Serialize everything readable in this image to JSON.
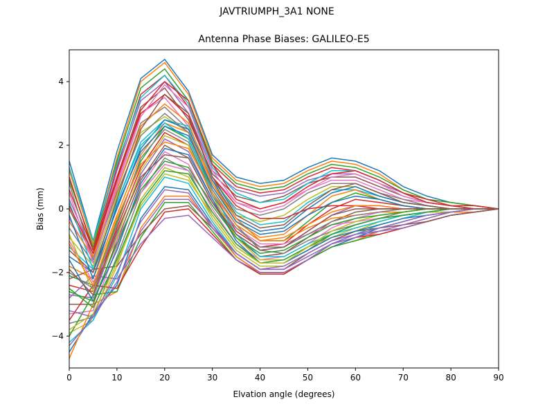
{
  "figure": {
    "suptitle": "JAVTRIUMPH_3A1  NONE"
  },
  "chart_data": {
    "type": "line",
    "title": "Antenna Phase Biases: GALILEO-E5",
    "xlabel": "Elvation angle (degrees)",
    "ylabel": "Bias (mm)",
    "xlim": [
      0,
      90
    ],
    "ylim": [
      -5,
      5
    ],
    "xticks": [
      0,
      10,
      20,
      30,
      40,
      50,
      60,
      70,
      80,
      90
    ],
    "yticks": [
      -4,
      -2,
      0,
      2,
      4
    ],
    "grid": false,
    "legend": "none",
    "x": [
      0,
      5,
      10,
      15,
      20,
      25,
      30,
      35,
      40,
      45,
      50,
      55,
      60,
      65,
      70,
      75,
      80,
      85,
      90
    ],
    "color_cycle": [
      "#1f77b4",
      "#ff7f0e",
      "#2ca02c",
      "#d62728",
      "#9467bd",
      "#8c564b",
      "#e377c2",
      "#7f7f7f",
      "#bcbd22",
      "#17becf"
    ],
    "series": [
      {
        "values": [
          1.5,
          -1.0,
          1.8,
          4.1,
          4.7,
          3.7,
          1.7,
          1.0,
          0.8,
          0.9,
          1.3,
          1.6,
          1.5,
          1.2,
          0.7,
          0.4,
          0.2,
          0.1,
          0.0
        ]
      },
      {
        "values": [
          1.2,
          -1.1,
          1.6,
          4.0,
          4.6,
          3.6,
          1.6,
          0.9,
          0.7,
          0.8,
          1.2,
          1.5,
          1.4,
          1.1,
          0.6,
          0.3,
          0.2,
          0.1,
          0.0
        ]
      },
      {
        "values": [
          0.9,
          -1.2,
          1.5,
          3.8,
          4.4,
          3.4,
          1.5,
          0.8,
          0.6,
          0.7,
          1.1,
          1.4,
          1.3,
          1.0,
          0.6,
          0.3,
          0.2,
          0.1,
          0.0
        ]
      },
      {
        "values": [
          0.6,
          -1.3,
          1.3,
          3.6,
          4.2,
          3.2,
          1.4,
          0.7,
          0.5,
          0.6,
          1.0,
          1.3,
          1.2,
          0.9,
          0.5,
          0.3,
          0.1,
          0.1,
          0.0
        ]
      },
      {
        "values": [
          0.3,
          -1.4,
          1.2,
          3.4,
          4.0,
          3.0,
          1.2,
          0.6,
          0.4,
          0.5,
          0.9,
          1.1,
          1.1,
          0.8,
          0.5,
          0.2,
          0.1,
          0.0,
          0.0
        ]
      },
      {
        "values": [
          0.0,
          -1.5,
          1.0,
          3.2,
          3.8,
          2.8,
          1.1,
          0.4,
          0.2,
          0.4,
          0.8,
          1.0,
          1.0,
          0.7,
          0.4,
          0.2,
          0.1,
          0.0,
          0.0
        ]
      },
      {
        "values": [
          -0.3,
          -1.6,
          0.8,
          3.0,
          3.5,
          2.6,
          1.0,
          0.2,
          0.0,
          0.2,
          0.6,
          0.9,
          0.9,
          0.6,
          0.3,
          0.2,
          0.1,
          0.0,
          0.0
        ]
      },
      {
        "values": [
          -0.6,
          -1.7,
          0.6,
          2.7,
          3.2,
          2.5,
          0.9,
          0.0,
          -0.2,
          0.0,
          0.5,
          0.8,
          0.8,
          0.5,
          0.3,
          0.1,
          0.0,
          0.0,
          0.0
        ]
      },
      {
        "values": [
          -0.9,
          -1.8,
          0.4,
          2.4,
          2.9,
          2.4,
          0.8,
          -0.2,
          -0.4,
          -0.2,
          0.3,
          0.7,
          0.7,
          0.4,
          0.2,
          0.1,
          0.0,
          0.0,
          0.0
        ]
      },
      {
        "values": [
          -1.2,
          -1.9,
          0.2,
          2.1,
          2.8,
          2.6,
          1.0,
          -0.1,
          -0.5,
          -0.4,
          0.2,
          0.6,
          0.6,
          0.4,
          0.2,
          0.1,
          0.0,
          0.0,
          0.0
        ]
      },
      {
        "values": [
          -1.5,
          -2.0,
          0.0,
          1.9,
          2.8,
          2.5,
          0.9,
          -0.3,
          -0.7,
          -0.6,
          0.0,
          0.5,
          0.7,
          0.4,
          0.2,
          0.1,
          0.0,
          0.0,
          0.0
        ]
      },
      {
        "values": [
          -1.8,
          -2.2,
          -0.2,
          1.7,
          2.7,
          2.4,
          0.8,
          -0.4,
          -0.9,
          -0.8,
          -0.2,
          0.4,
          0.6,
          0.3,
          0.1,
          0.0,
          0.0,
          0.0,
          0.0
        ]
      },
      {
        "values": [
          -2.1,
          -2.4,
          -0.4,
          1.5,
          2.6,
          2.2,
          0.6,
          -0.5,
          -1.0,
          -1.0,
          -0.4,
          0.2,
          0.5,
          0.3,
          0.1,
          0.0,
          0.0,
          0.0,
          0.0
        ]
      },
      {
        "values": [
          -2.4,
          -2.6,
          -0.6,
          1.3,
          2.4,
          2.0,
          0.5,
          -0.7,
          -1.2,
          -1.1,
          -0.5,
          0.0,
          0.3,
          0.2,
          0.1,
          0.0,
          0.0,
          0.0,
          0.0
        ]
      },
      {
        "values": [
          -2.7,
          -2.8,
          -0.8,
          1.1,
          2.2,
          1.8,
          0.3,
          -0.8,
          -1.3,
          -1.2,
          -0.7,
          -0.2,
          0.1,
          0.1,
          0.0,
          0.0,
          0.0,
          0.0,
          0.0
        ]
      },
      {
        "values": [
          -3.0,
          -3.0,
          -1.0,
          0.9,
          2.0,
          1.6,
          0.2,
          -0.9,
          -1.5,
          -1.4,
          -0.9,
          -0.4,
          -0.1,
          0.0,
          0.0,
          0.0,
          0.0,
          0.0,
          0.0
        ]
      },
      {
        "values": [
          -3.3,
          -3.2,
          -1.2,
          0.7,
          1.8,
          1.4,
          0.0,
          -1.1,
          -1.6,
          -1.5,
          -1.1,
          -0.6,
          -0.3,
          -0.1,
          0.0,
          0.0,
          0.0,
          0.0,
          0.0
        ]
      },
      {
        "values": [
          -3.6,
          -3.4,
          -1.5,
          0.5,
          1.6,
          1.2,
          -0.2,
          -1.2,
          -1.7,
          -1.7,
          -1.3,
          -0.8,
          -0.5,
          -0.3,
          -0.1,
          0.0,
          0.0,
          0.0,
          0.0
        ]
      },
      {
        "values": [
          -3.9,
          -3.5,
          -1.8,
          0.3,
          1.3,
          1.0,
          -0.3,
          -1.3,
          -1.8,
          -1.8,
          -1.4,
          -1.0,
          -0.7,
          -0.4,
          -0.2,
          -0.1,
          0.0,
          0.0,
          0.0
        ]
      },
      {
        "values": [
          -4.2,
          -3.5,
          -2.1,
          0.0,
          1.0,
          0.8,
          -0.4,
          -1.4,
          -1.9,
          -1.9,
          -1.5,
          -1.1,
          -0.8,
          -0.5,
          -0.3,
          -0.1,
          -0.1,
          0.0,
          0.0
        ]
      },
      {
        "values": [
          -4.5,
          -3.3,
          -2.4,
          -0.3,
          0.7,
          0.6,
          -0.5,
          -1.5,
          -2.0,
          -2.0,
          -1.6,
          -1.2,
          -0.9,
          -0.6,
          -0.4,
          -0.2,
          -0.1,
          0.0,
          0.0
        ]
      },
      {
        "values": [
          -4.7,
          -3.0,
          -2.6,
          -0.6,
          0.4,
          0.4,
          -0.6,
          -1.5,
          -2.0,
          -2.0,
          -1.6,
          -1.2,
          -1.0,
          -0.7,
          -0.5,
          -0.3,
          -0.1,
          -0.1,
          0.0
        ]
      },
      {
        "values": [
          -4.0,
          -2.7,
          -2.6,
          -0.9,
          0.2,
          0.2,
          -0.7,
          -1.6,
          -2.05,
          -2.05,
          -1.6,
          -1.2,
          -1.0,
          -0.8,
          -0.6,
          -0.4,
          -0.2,
          -0.1,
          0.0
        ]
      },
      {
        "values": [
          -3.5,
          -2.4,
          -2.5,
          -1.2,
          -0.1,
          0.0,
          -0.8,
          -1.6,
          -2.05,
          -2.05,
          -1.6,
          -1.1,
          -0.9,
          -0.8,
          -0.6,
          -0.4,
          -0.2,
          -0.1,
          0.0
        ]
      },
      {
        "values": [
          -2.8,
          -2.1,
          -2.2,
          -1.1,
          -0.3,
          -0.2,
          -0.9,
          -1.6,
          -2.0,
          -2.0,
          -1.6,
          -1.1,
          -0.8,
          -0.7,
          -0.6,
          -0.4,
          -0.2,
          -0.1,
          0.0
        ]
      },
      {
        "values": [
          -2.2,
          -1.9,
          -1.8,
          -0.8,
          0.0,
          0.1,
          -0.6,
          -1.4,
          -1.9,
          -1.9,
          -1.4,
          -1.0,
          -0.7,
          -0.6,
          -0.5,
          -0.4,
          -0.2,
          -0.1,
          0.0
        ]
      },
      {
        "values": [
          -1.0,
          -2.3,
          -1.0,
          0.5,
          1.4,
          1.2,
          0.2,
          -0.6,
          -1.1,
          -1.1,
          -0.8,
          -0.5,
          -0.4,
          -0.3,
          -0.2,
          -0.1,
          -0.1,
          0.0,
          0.0
        ]
      },
      {
        "values": [
          0.8,
          -1.6,
          0.5,
          2.3,
          3.0,
          2.4,
          0.6,
          -0.5,
          -1.3,
          -1.4,
          -1.0,
          -0.7,
          -0.5,
          -0.3,
          -0.2,
          -0.1,
          0.0,
          0.0,
          0.0
        ]
      },
      {
        "values": [
          -0.8,
          -2.6,
          -0.9,
          1.2,
          2.3,
          2.0,
          0.4,
          -0.9,
          -1.6,
          -1.6,
          -1.2,
          -0.9,
          -0.6,
          -0.4,
          -0.2,
          -0.1,
          -0.1,
          0.0,
          0.0
        ]
      },
      {
        "values": [
          0.2,
          -1.9,
          0.2,
          2.0,
          2.7,
          2.2,
          0.5,
          -0.8,
          -1.5,
          -1.5,
          -1.1,
          -0.8,
          -0.6,
          -0.4,
          -0.2,
          -0.1,
          0.0,
          0.0,
          0.0
        ]
      },
      {
        "values": [
          -1.6,
          -2.9,
          -1.3,
          0.8,
          1.9,
          1.7,
          0.3,
          -1.0,
          -1.7,
          -1.7,
          -1.3,
          -0.9,
          -0.7,
          -0.5,
          -0.3,
          -0.2,
          -0.1,
          0.0,
          0.0
        ]
      },
      {
        "values": [
          -0.4,
          -1.5,
          0.6,
          2.6,
          3.3,
          2.7,
          0.8,
          -0.3,
          -1.0,
          -1.0,
          -0.6,
          -0.3,
          -0.2,
          -0.1,
          -0.1,
          0.0,
          0.0,
          0.0,
          0.0
        ]
      },
      {
        "values": [
          -2.5,
          -3.1,
          -1.6,
          0.2,
          1.2,
          1.1,
          -0.1,
          -1.1,
          -1.7,
          -1.6,
          -1.2,
          -0.8,
          -0.5,
          -0.3,
          -0.2,
          -0.1,
          0.0,
          0.0,
          0.0
        ]
      },
      {
        "values": [
          1.0,
          -1.3,
          1.0,
          3.0,
          3.6,
          2.9,
          1.0,
          0.1,
          -0.3,
          -0.3,
          0.0,
          0.1,
          0.1,
          0.0,
          0.0,
          0.0,
          0.0,
          0.0,
          0.0
        ]
      },
      {
        "values": [
          -3.2,
          -3.4,
          -2.0,
          -0.4,
          0.6,
          0.5,
          -0.6,
          -1.4,
          -1.9,
          -1.8,
          -1.4,
          -1.0,
          -0.8,
          -0.6,
          -0.4,
          -0.2,
          -0.1,
          0.0,
          0.0
        ]
      },
      {
        "values": [
          -1.3,
          -2.0,
          0.3,
          2.5,
          3.6,
          3.0,
          1.0,
          -0.2,
          -0.6,
          -0.5,
          0.1,
          0.6,
          0.8,
          0.5,
          0.2,
          0.1,
          0.0,
          0.0,
          0.0
        ]
      },
      {
        "values": [
          0.5,
          -1.7,
          0.7,
          2.9,
          3.9,
          3.2,
          1.2,
          0.2,
          -0.1,
          0.1,
          0.6,
          1.0,
          1.1,
          0.8,
          0.4,
          0.2,
          0.1,
          0.0,
          0.0
        ]
      },
      {
        "values": [
          -2.0,
          -2.5,
          -0.5,
          1.6,
          2.5,
          2.1,
          0.4,
          -0.6,
          -1.2,
          -1.2,
          -0.8,
          -0.4,
          -0.2,
          -0.1,
          0.0,
          0.0,
          0.0,
          0.0,
          0.0
        ]
      },
      {
        "values": [
          -3.8,
          -3.3,
          -1.7,
          0.1,
          1.1,
          0.9,
          -0.2,
          -1.2,
          -1.7,
          -1.7,
          -1.2,
          -0.7,
          -0.4,
          -0.2,
          -0.1,
          0.0,
          0.0,
          0.0,
          0.0
        ]
      },
      {
        "values": [
          1.3,
          -1.0,
          1.4,
          3.5,
          4.2,
          3.3,
          1.3,
          0.5,
          0.2,
          0.3,
          0.8,
          1.2,
          1.2,
          0.9,
          0.5,
          0.2,
          0.1,
          0.0,
          0.0
        ]
      },
      {
        "values": [
          -0.2,
          -2.2,
          0.1,
          1.8,
          2.6,
          2.3,
          0.7,
          -0.4,
          -0.8,
          -0.7,
          -0.2,
          0.2,
          0.4,
          0.3,
          0.1,
          0.0,
          0.0,
          0.0,
          0.0
        ]
      },
      {
        "values": [
          -1.1,
          -2.4,
          -0.3,
          1.4,
          2.1,
          1.9,
          0.5,
          -0.5,
          -1.0,
          -0.9,
          -0.5,
          -0.1,
          0.1,
          0.1,
          0.0,
          0.0,
          0.0,
          0.0,
          0.0
        ]
      },
      {
        "values": [
          -2.6,
          -2.9,
          -1.1,
          0.6,
          1.5,
          1.3,
          0.1,
          -0.9,
          -1.4,
          -1.3,
          -0.9,
          -0.5,
          -0.3,
          -0.2,
          -0.1,
          0.0,
          0.0,
          0.0,
          0.0
        ]
      },
      {
        "values": [
          0.1,
          -1.4,
          0.9,
          3.1,
          4.0,
          3.4,
          1.4,
          0.3,
          0.0,
          0.2,
          0.7,
          1.1,
          1.2,
          0.9,
          0.5,
          0.2,
          0.1,
          0.0,
          0.0
        ]
      },
      {
        "values": [
          -4.3,
          -3.4,
          -2.3,
          -0.7,
          0.3,
          0.3,
          -0.5,
          -1.4,
          -1.9,
          -1.9,
          -1.5,
          -1.1,
          -0.9,
          -0.7,
          -0.5,
          -0.3,
          -0.1,
          0.0,
          0.0
        ]
      },
      {
        "values": [
          -1.9,
          -2.7,
          -0.7,
          1.0,
          1.7,
          1.6,
          0.2,
          -0.8,
          -1.3,
          -1.2,
          -0.7,
          -0.2,
          0.0,
          0.0,
          0.0,
          0.0,
          0.0,
          0.0,
          0.0
        ]
      }
    ]
  }
}
